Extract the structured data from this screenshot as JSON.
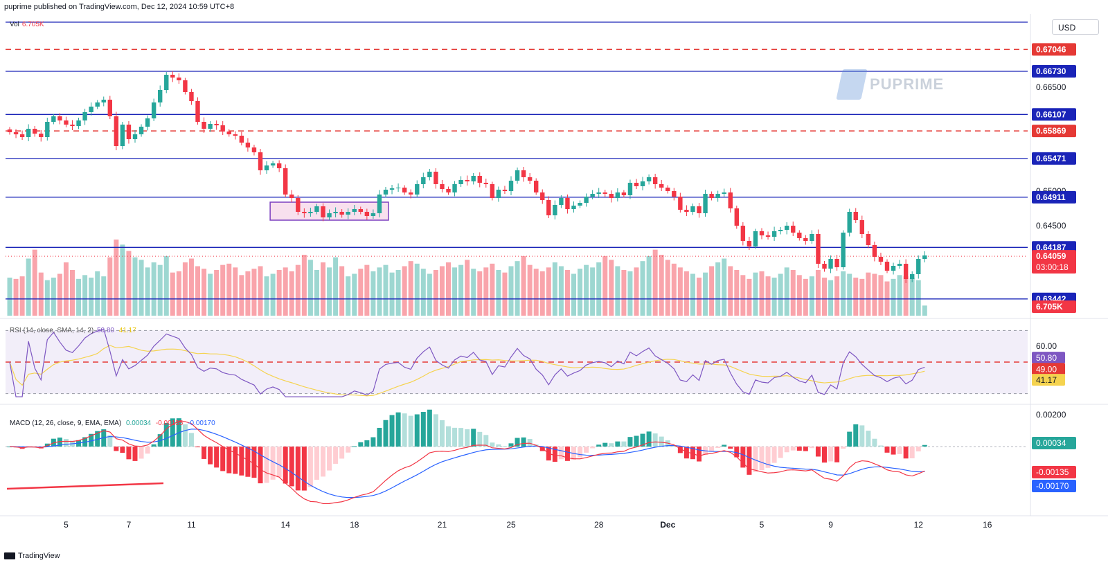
{
  "header": {
    "publisher_line": "puprime published on TradingView.com, Dec 12, 2024 10:59 UTC+8"
  },
  "footer": {
    "brand": "TradingView"
  },
  "watermark": {
    "text": "PUPRIME"
  },
  "currency_button": "USD",
  "volume_legend": {
    "label": "Vol",
    "value": "6.705K"
  },
  "rsi_legend": {
    "text": "RSI (14, close, SMA, 14, 2)",
    "rsi": "50.80",
    "sma": "41.17"
  },
  "macd_legend": {
    "text": "MACD (12, 26, close, 9, EMA, EMA)",
    "hist": "0.00034",
    "macd": "-0.00135",
    "signal": "-0.00170"
  },
  "colors": {
    "up": "#26a69a",
    "down": "#f23645",
    "level_line": "#1a24b8",
    "dashed_level": "#e53935",
    "rsi": "#7e57c2",
    "rsi_sma": "#f5d34f",
    "macd": "#2962ff",
    "macd_signal": "#f23645",
    "box_border": "#7b3fbf",
    "box_fill": "#f3c6e0"
  },
  "chart_data": {
    "type": "candlestick",
    "symbol_quote": "USD",
    "ylim": [
      0.6316,
      0.6748
    ],
    "x_ticks": [
      {
        "label": "5",
        "index": 9
      },
      {
        "label": "7",
        "index": 19
      },
      {
        "label": "11",
        "index": 29
      },
      {
        "label": "14",
        "index": 44
      },
      {
        "label": "18",
        "index": 55
      },
      {
        "label": "21",
        "index": 69
      },
      {
        "label": "25",
        "index": 80
      },
      {
        "label": "28",
        "index": 94
      },
      {
        "label": "Dec",
        "index": 105
      },
      {
        "label": "5",
        "index": 120
      },
      {
        "label": "9",
        "index": 131
      },
      {
        "label": "12",
        "index": 145
      },
      {
        "label": "16",
        "index": 156
      }
    ],
    "y_ticks": [
      "0.66500",
      "0.65000",
      "0.64500"
    ],
    "horizontal_levels": [
      {
        "value": 0.6744,
        "style": "solid"
      },
      {
        "value": 0.67046,
        "style": "dashed",
        "label": "0.67046"
      },
      {
        "value": 0.6673,
        "style": "solid",
        "label": "0.66730"
      },
      {
        "value": 0.66107,
        "style": "solid",
        "label": "0.66107"
      },
      {
        "value": 0.65869,
        "style": "dashed",
        "label": "0.65869"
      },
      {
        "value": 0.65471,
        "style": "solid",
        "label": "0.65471"
      },
      {
        "value": 0.64911,
        "style": "solid",
        "label": "0.64911"
      },
      {
        "value": 0.64187,
        "style": "solid",
        "label": "0.64187"
      },
      {
        "value": 0.63442,
        "style": "solid",
        "label": "0.63442"
      }
    ],
    "current_price": {
      "value": 0.64059,
      "label": "0.64059",
      "countdown": "03:00:18"
    },
    "consolidation_box": {
      "start_index": 42,
      "end_index": 60,
      "high": 0.6484,
      "low": 0.6458
    },
    "close_series": [
      0.6585,
      0.6582,
      0.6578,
      0.659,
      0.6583,
      0.6578,
      0.66,
      0.6608,
      0.6602,
      0.6596,
      0.6594,
      0.6602,
      0.6614,
      0.6622,
      0.6628,
      0.6632,
      0.6608,
      0.6565,
      0.6596,
      0.6575,
      0.6582,
      0.6593,
      0.6605,
      0.6628,
      0.6646,
      0.6668,
      0.6664,
      0.666,
      0.6643,
      0.663,
      0.66,
      0.659,
      0.6597,
      0.6595,
      0.6586,
      0.6582,
      0.658,
      0.657,
      0.6563,
      0.6556,
      0.653,
      0.6537,
      0.654,
      0.6533,
      0.6495,
      0.649,
      0.647,
      0.6468,
      0.647,
      0.6478,
      0.6462,
      0.6468,
      0.647,
      0.6466,
      0.647,
      0.6474,
      0.647,
      0.6464,
      0.6468,
      0.6495,
      0.6502,
      0.6504,
      0.6505,
      0.6498,
      0.6495,
      0.651,
      0.652,
      0.6528,
      0.651,
      0.6503,
      0.6498,
      0.651,
      0.6516,
      0.6514,
      0.6522,
      0.6512,
      0.651,
      0.649,
      0.6502,
      0.65,
      0.6515,
      0.653,
      0.652,
      0.6515,
      0.6498,
      0.6487,
      0.6465,
      0.648,
      0.649,
      0.6474,
      0.6479,
      0.6483,
      0.6492,
      0.6496,
      0.6498,
      0.6496,
      0.649,
      0.6498,
      0.6494,
      0.6512,
      0.6507,
      0.6514,
      0.652,
      0.651,
      0.6505,
      0.65,
      0.6492,
      0.6473,
      0.647,
      0.6478,
      0.6468,
      0.6496,
      0.649,
      0.6496,
      0.6498,
      0.6475,
      0.645,
      0.6428,
      0.642,
      0.6442,
      0.6436,
      0.6434,
      0.6442,
      0.6444,
      0.645,
      0.644,
      0.6432,
      0.6428,
      0.6438,
      0.6395,
      0.6388,
      0.6402,
      0.639,
      0.644,
      0.647,
      0.6458,
      0.6438,
      0.6422,
      0.6405,
      0.6398,
      0.6385,
      0.6392,
      0.6395,
      0.6373,
      0.638,
      0.6402,
      0.6407
    ],
    "volume": {
      "current": "6.705K",
      "values": [
        30,
        29,
        31,
        45,
        52,
        34,
        28,
        30,
        33,
        42,
        36,
        29,
        32,
        30,
        35,
        31,
        46,
        60,
        56,
        51,
        46,
        44,
        38,
        42,
        40,
        47,
        34,
        35,
        42,
        45,
        39,
        37,
        33,
        36,
        40,
        41,
        38,
        32,
        35,
        37,
        39,
        31,
        33,
        36,
        38,
        35,
        40,
        48,
        44,
        36,
        42,
        38,
        46,
        39,
        31,
        33,
        37,
        40,
        35,
        38,
        40,
        34,
        36,
        39,
        43,
        41,
        37,
        33,
        36,
        39,
        42,
        38,
        40,
        44,
        37,
        35,
        38,
        41,
        36,
        34,
        39,
        43,
        47,
        40,
        37,
        35,
        38,
        42,
        39,
        36,
        33,
        37,
        40,
        38,
        42,
        47,
        44,
        39,
        36,
        35,
        38,
        43,
        47,
        52,
        48,
        44,
        41,
        38,
        35,
        33,
        30,
        34,
        39,
        42,
        45,
        39,
        36,
        32,
        29,
        34,
        35,
        31,
        30,
        33,
        38,
        36,
        32,
        29,
        31,
        36,
        30,
        28,
        31,
        35,
        33,
        30,
        29,
        34,
        33,
        32,
        27,
        29,
        32,
        31,
        30,
        28,
        8
      ]
    },
    "rsi": {
      "label": "RSI (14, close, SMA, 14, 2)",
      "value": "50.80",
      "sma_value": "41.17",
      "levels": [
        "60.00",
        "49.00"
      ],
      "ylim": [
        25,
        75
      ]
    },
    "macd": {
      "label": "MACD (12, 26, close, 9, EMA, EMA)",
      "histogram_value": "0.00034",
      "macd_value": "-0.00135",
      "signal_value": "-0.00170",
      "y_ticks": [
        "0.00200"
      ],
      "ylim": [
        -0.0042,
        0.0023
      ]
    }
  }
}
